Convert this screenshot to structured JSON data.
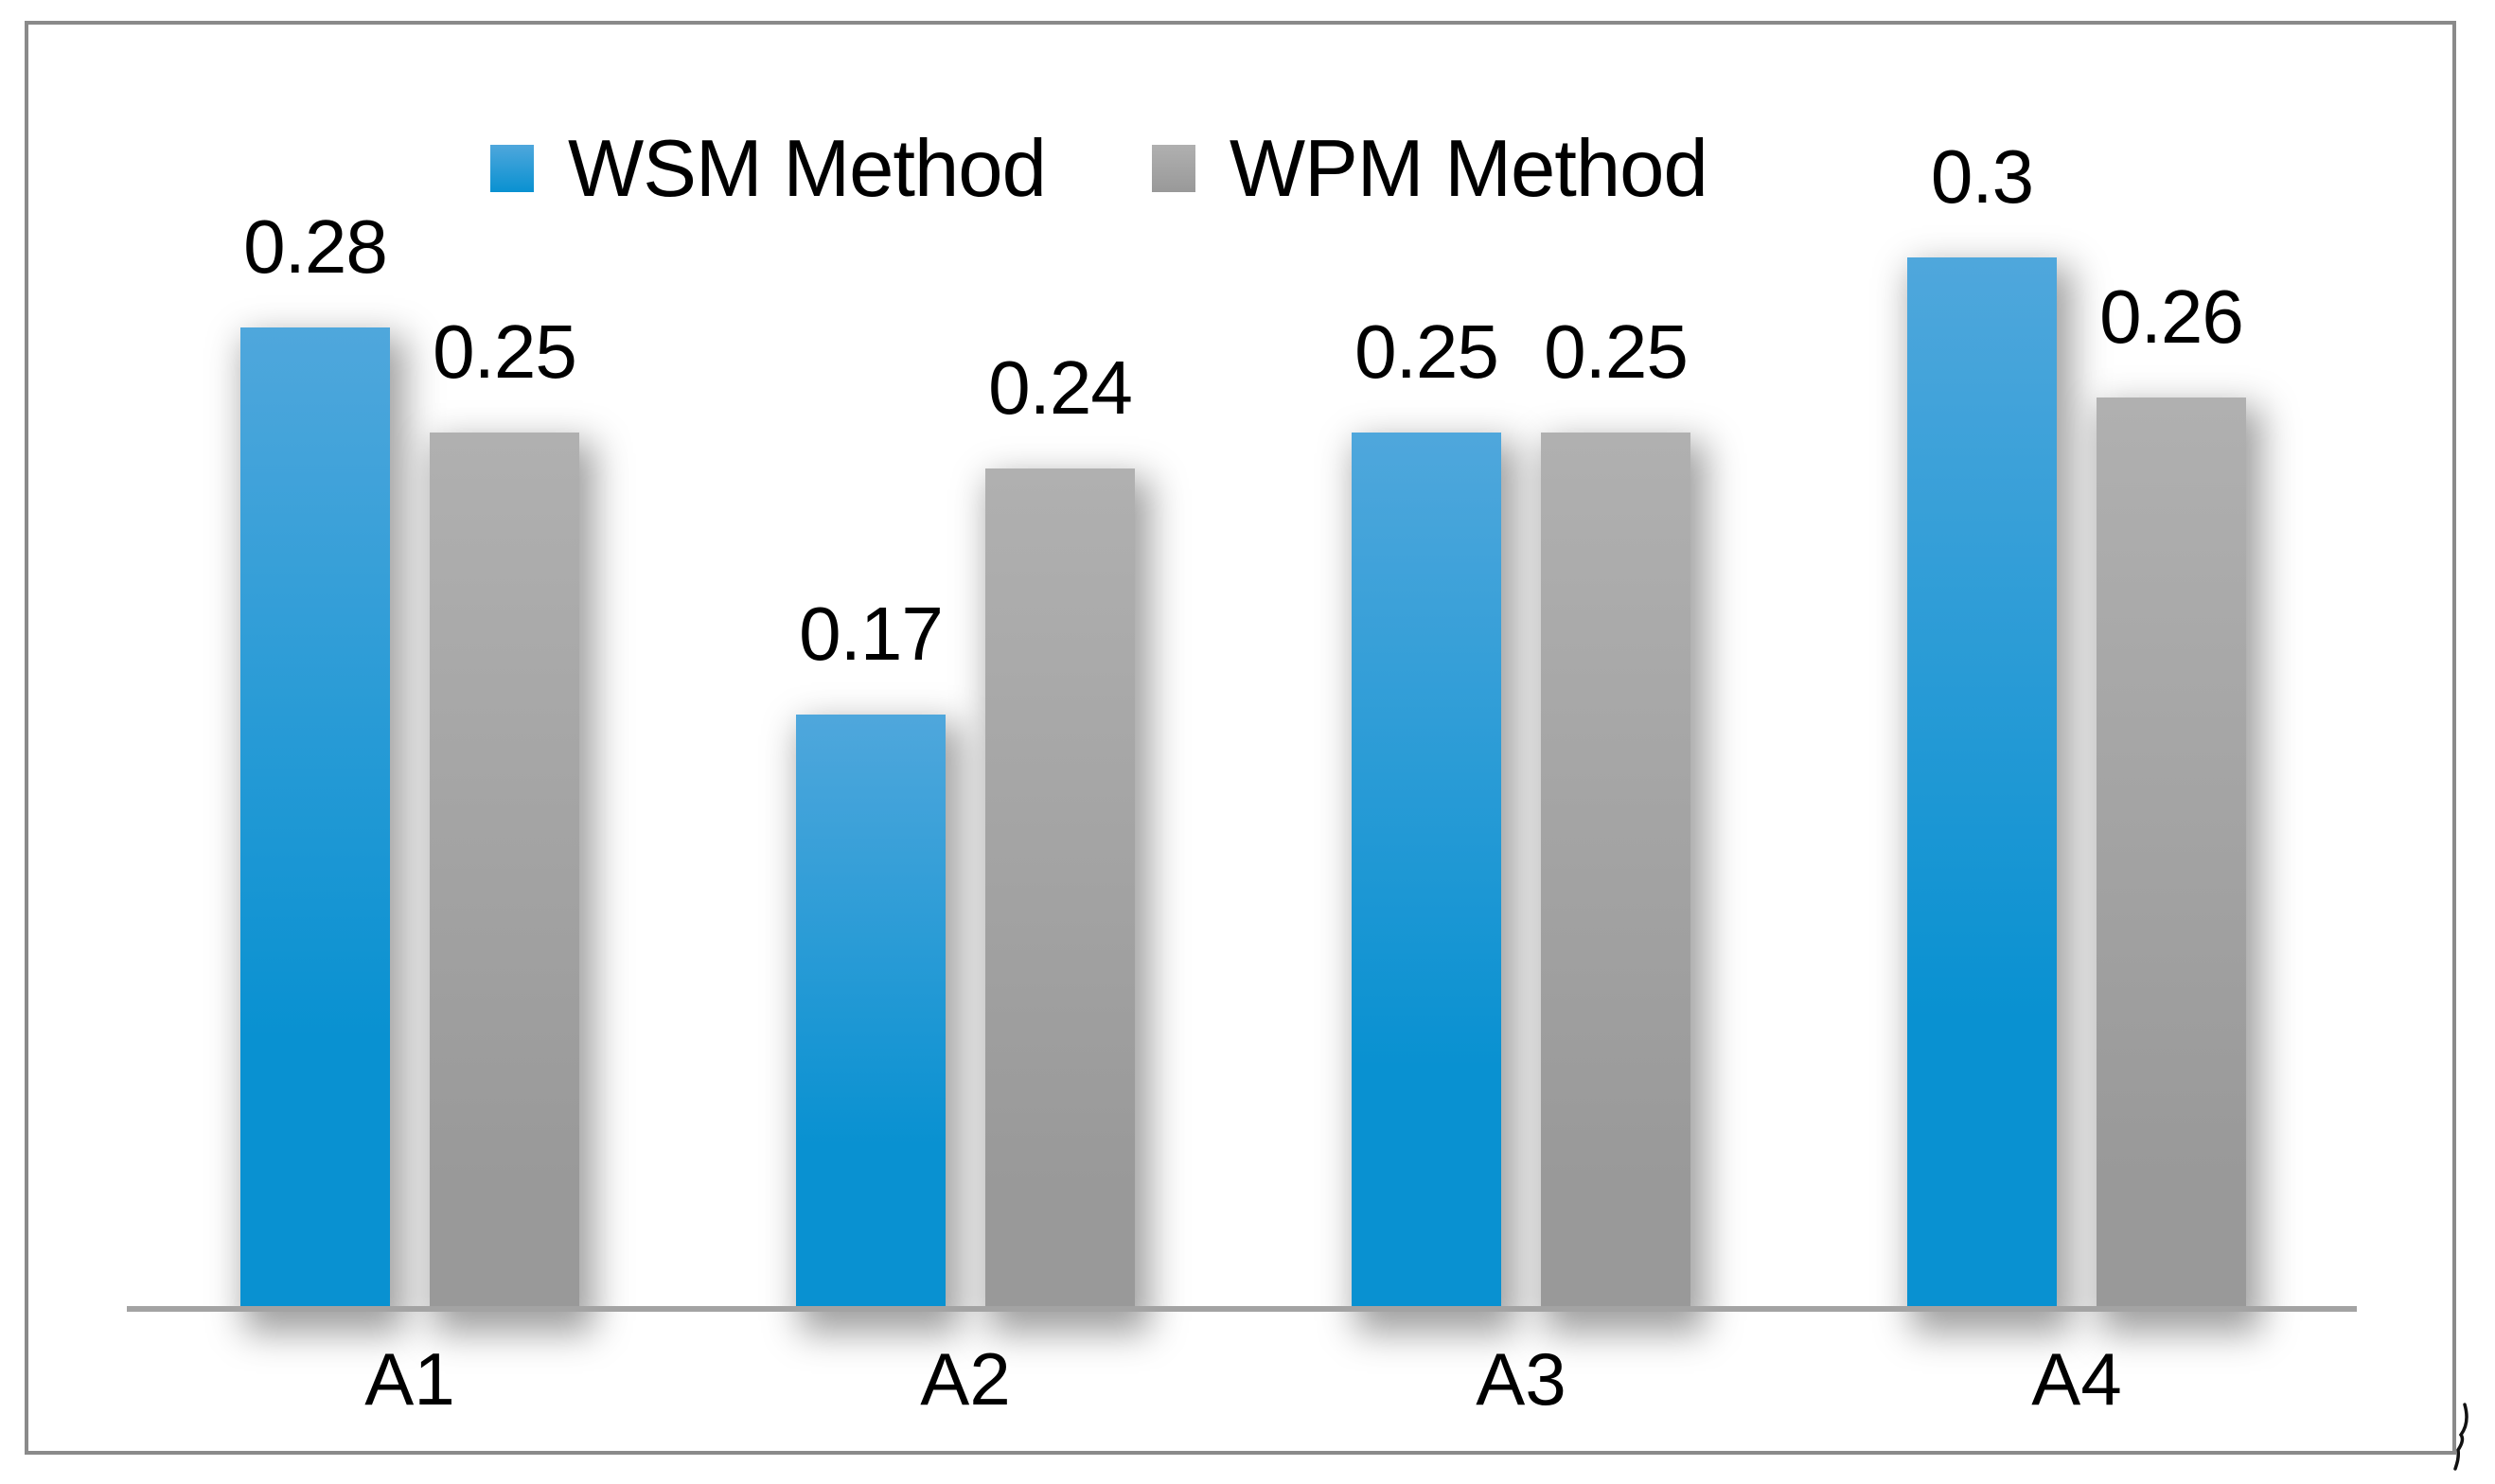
{
  "chart_data": {
    "type": "bar",
    "title": "",
    "xlabel": "",
    "ylabel": "",
    "categories": [
      "A1",
      "A2",
      "A3",
      "A4"
    ],
    "series": [
      {
        "name": "WSM Method",
        "values": [
          0.28,
          0.17,
          0.25,
          0.3
        ],
        "labels": [
          "0.28",
          "0.17",
          "0.25",
          "0.3"
        ],
        "color_top": "#4fa7dc",
        "color_bottom": "#0991d1"
      },
      {
        "name": "WPM Method",
        "values": [
          0.25,
          0.24,
          0.25,
          0.26
        ],
        "labels": [
          "0.25",
          "0.24",
          "0.25",
          "0.26"
        ],
        "color_top": "#b0b0b0",
        "color_bottom": "#999999"
      }
    ],
    "ylim": [
      0,
      0.35
    ],
    "grid": false,
    "y_axis_visible": false,
    "data_labels_visible": true,
    "legend_position": "top",
    "frame_color": "#8a8a8a",
    "axis_color": "#a3a3a3",
    "label_color": "#000000",
    "background_color": "#ffffff"
  }
}
